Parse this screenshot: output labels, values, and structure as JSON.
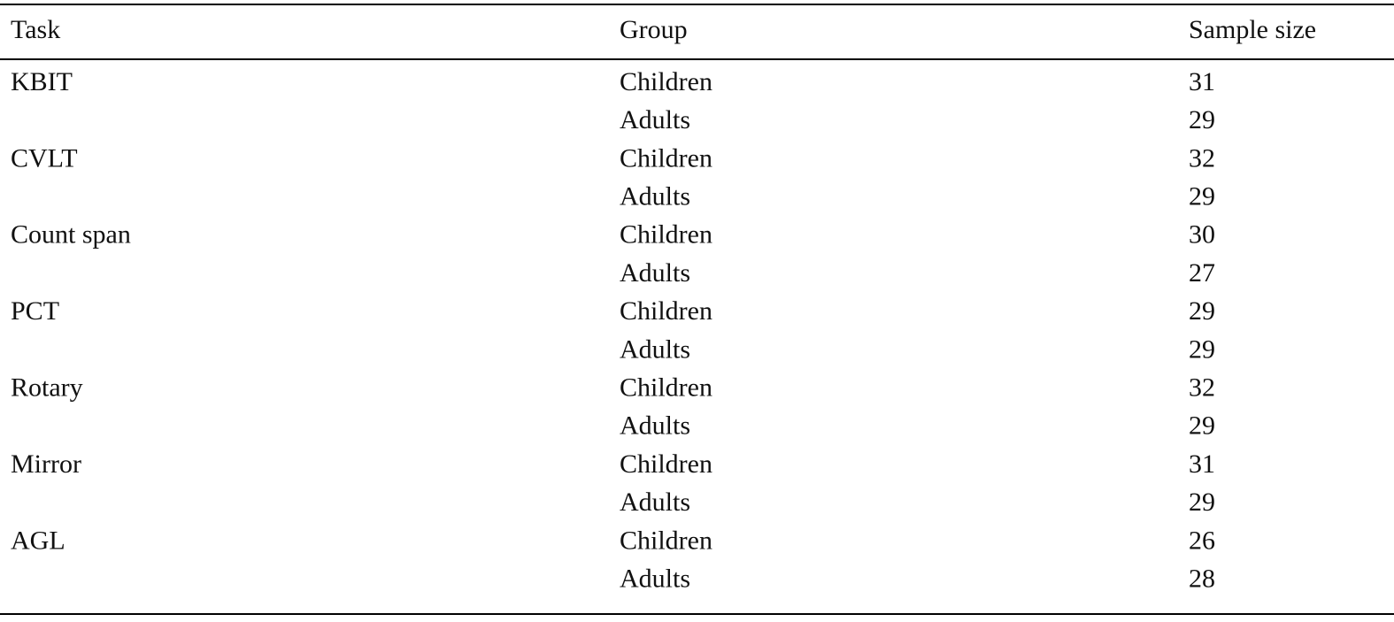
{
  "table": {
    "header": [
      "Task",
      "Group",
      "Sample size"
    ],
    "sections": [
      {
        "task": "KBIT",
        "rows": [
          {
            "group": "Children",
            "n": 31
          },
          {
            "group": "Adults",
            "n": 29
          }
        ]
      },
      {
        "task": "CVLT",
        "rows": [
          {
            "group": "Children",
            "n": 32
          },
          {
            "group": "Adults",
            "n": 29
          }
        ]
      },
      {
        "task": "Count span",
        "rows": [
          {
            "group": "Children",
            "n": 30
          },
          {
            "group": "Adults",
            "n": 27
          }
        ]
      },
      {
        "task": "PCT",
        "rows": [
          {
            "group": "Children",
            "n": 29
          },
          {
            "group": "Adults",
            "n": 29
          }
        ]
      },
      {
        "task": "Rotary",
        "rows": [
          {
            "group": "Children",
            "n": 32
          },
          {
            "group": "Adults",
            "n": 29
          }
        ]
      },
      {
        "task": "Mirror",
        "rows": [
          {
            "group": "Children",
            "n": 31
          },
          {
            "group": "Adults",
            "n": 29
          }
        ]
      },
      {
        "task": "AGL",
        "rows": [
          {
            "group": "Children",
            "n": 26
          },
          {
            "group": "Adults",
            "n": 28
          }
        ]
      }
    ]
  }
}
